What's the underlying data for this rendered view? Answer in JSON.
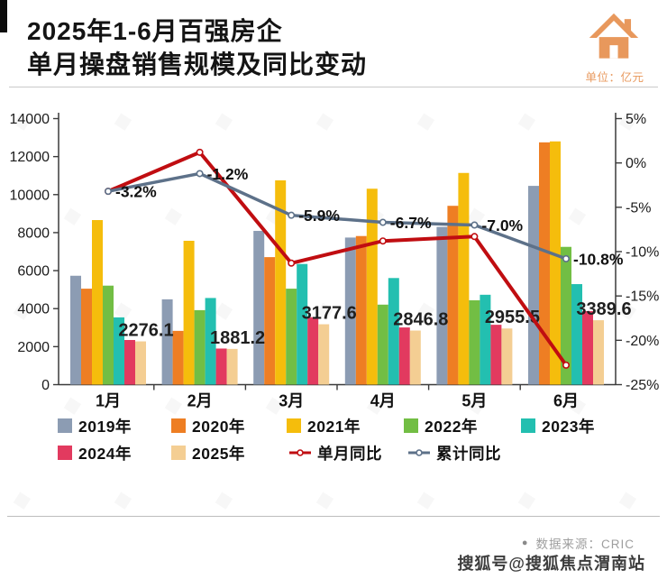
{
  "header": {
    "title_line1": "2025年1-6月百强房企",
    "title_line2": "单月操盘销售规模及同比变动",
    "unit_label": "单位：亿元",
    "icon_color": "#E8985C"
  },
  "chart_data": {
    "type": "bar",
    "subtype": "grouped bars with two percentage line series (dual axis)",
    "title": "2025年1-6月百强房企单月操盘销售规模及同比变动",
    "categories": [
      "1月",
      "2月",
      "3月",
      "4月",
      "5月",
      "6月"
    ],
    "bar_series": [
      {
        "name": "2019年",
        "color": "#8C9CB3",
        "values": [
          5730,
          4490,
          8090,
          7740,
          8300,
          10460
        ]
      },
      {
        "name": "2020年",
        "color": "#EE7E23",
        "values": [
          5050,
          2830,
          6710,
          7820,
          9410,
          12750
        ]
      },
      {
        "name": "2021年",
        "color": "#F5BD0C",
        "values": [
          8660,
          7570,
          10750,
          10310,
          11140,
          12800
        ]
      },
      {
        "name": "2022年",
        "color": "#72BE44",
        "values": [
          5210,
          3920,
          5050,
          4210,
          4440,
          7250
        ]
      },
      {
        "name": "2023年",
        "color": "#23BFB0",
        "values": [
          3540,
          4560,
          6350,
          5610,
          4730,
          5290
        ]
      },
      {
        "name": "2024年",
        "color": "#E23A5F",
        "values": [
          2350,
          1900,
          3550,
          3010,
          3150,
          3870
        ]
      },
      {
        "name": "2025年",
        "color": "#F4CE93",
        "values": [
          2276.1,
          1881.2,
          3177.6,
          2846.8,
          2955.5,
          3389.6
        ]
      }
    ],
    "value_labels": {
      "series": "2025年",
      "texts": [
        "2276.1",
        "1881.2",
        "3177.6",
        "2846.8",
        "2955.5",
        "3389.6"
      ]
    },
    "line_series": [
      {
        "name": "单月同比",
        "color": "#C00D11",
        "values": [
          -3.2,
          1.2,
          -11.3,
          -8.8,
          -8.3,
          -22.8
        ],
        "point_labels": [
          "",
          "",
          "",
          "",
          "",
          ""
        ]
      },
      {
        "name": "累计同比",
        "color": "#5D7189",
        "values": [
          -3.2,
          -1.2,
          -5.9,
          -6.7,
          -7.0,
          -10.8
        ],
        "point_labels": [
          "-3.2%",
          "-1.2%",
          "-5.9%",
          "-6.7%",
          "-7.0%",
          "-10.8%"
        ]
      }
    ],
    "left_axis": {
      "min": 0,
      "max": 14000,
      "ticks": [
        "0",
        "2000",
        "4000",
        "6000",
        "8000",
        "10000",
        "12000",
        "14000"
      ]
    },
    "right_axis": {
      "min": -25,
      "max": 5,
      "ticks": [
        "5%",
        "0%",
        "-5%",
        "-10%",
        "-15%",
        "-20%",
        "-25%"
      ]
    },
    "grid": false,
    "legend_position": "bottom",
    "legend_rows": [
      [
        "2019年",
        "2020年",
        "2021年",
        "2022年",
        "2023年"
      ],
      [
        "2024年",
        "2025年",
        "单月同比",
        "累计同比"
      ]
    ]
  },
  "footer": {
    "source_bullet": "●",
    "source": "数据来源：CRIC",
    "watermark": "搜狐号@搜狐焦点渭南站"
  }
}
